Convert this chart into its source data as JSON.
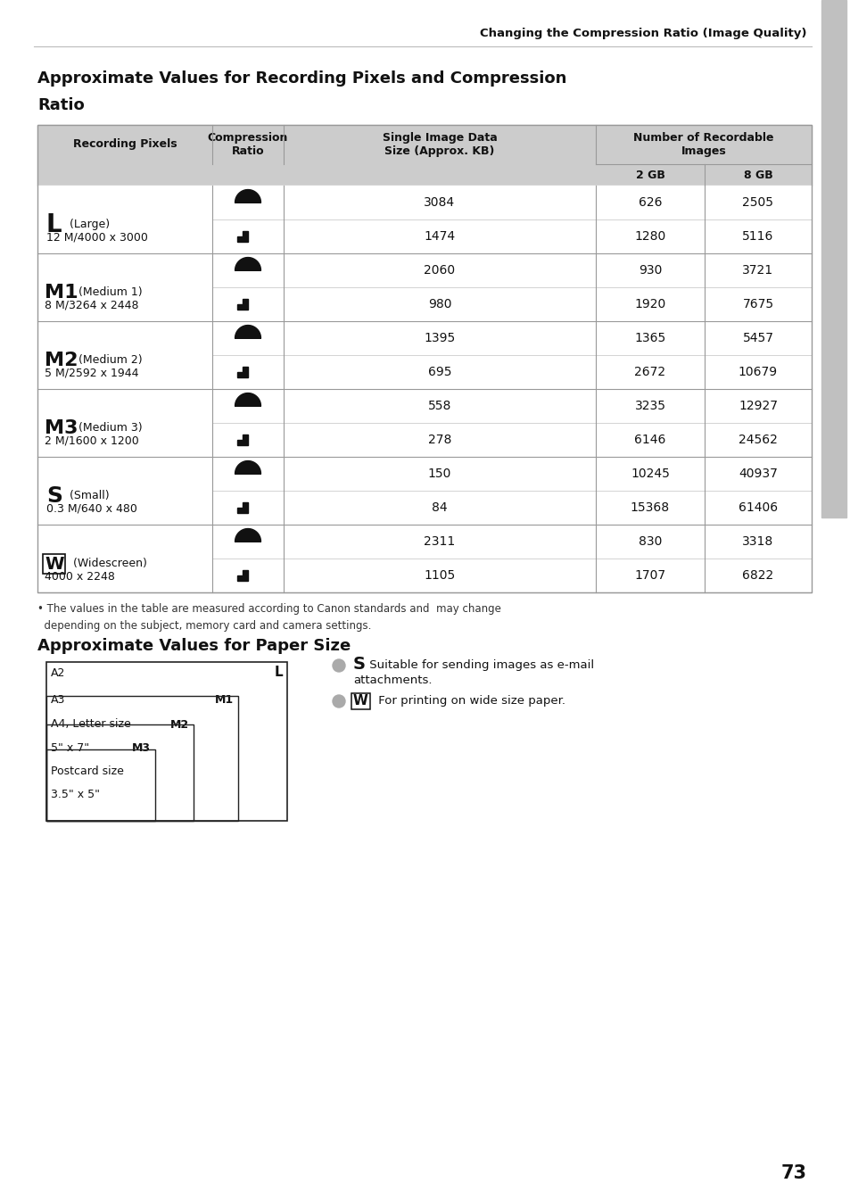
{
  "page_header": "Changing the Compression Ratio (Image Quality)",
  "main_title_line1": "Approximate Values for Recording Pixels and Compression",
  "main_title_line2": "Ratio",
  "table_rows": [
    {
      "pixel_main": "L",
      "pixel_desc": "(Large)",
      "pixel_sub": "12 M/4000 x 3000",
      "size1": "3084",
      "size2": "1474",
      "gb2_1": "626",
      "gb2_2": "1280",
      "gb8_1": "2505",
      "gb8_2": "5116"
    },
    {
      "pixel_main": "M1",
      "pixel_desc": "(Medium 1)",
      "pixel_sub": "8 M/3264 x 2448",
      "size1": "2060",
      "size2": "980",
      "gb2_1": "930",
      "gb2_2": "1920",
      "gb8_1": "3721",
      "gb8_2": "7675"
    },
    {
      "pixel_main": "M2",
      "pixel_desc": "(Medium 2)",
      "pixel_sub": "5 M/2592 x 1944",
      "size1": "1395",
      "size2": "695",
      "gb2_1": "1365",
      "gb2_2": "2672",
      "gb8_1": "5457",
      "gb8_2": "10679"
    },
    {
      "pixel_main": "M3",
      "pixel_desc": "(Medium 3)",
      "pixel_sub": "2 M/1600 x 1200",
      "size1": "558",
      "size2": "278",
      "gb2_1": "3235",
      "gb2_2": "6146",
      "gb8_1": "12927",
      "gb8_2": "24562"
    },
    {
      "pixel_main": "S",
      "pixel_desc": "(Small)",
      "pixel_sub": "0.3 M/640 x 480",
      "size1": "150",
      "size2": "84",
      "gb2_1": "10245",
      "gb2_2": "15368",
      "gb8_1": "40937",
      "gb8_2": "61406"
    },
    {
      "pixel_main": "W",
      "pixel_desc": "(Widescreen)",
      "pixel_sub": "4000 x 2248",
      "size1": "2311",
      "size2": "1105",
      "gb2_1": "830",
      "gb2_2": "1707",
      "gb8_1": "3318",
      "gb8_2": "6822"
    }
  ],
  "note_text": "• The values in the table are measured according to Canon standards and  may change\n  depending on the subject, memory card and camera settings.",
  "paper_title": "Approximate Values for Paper Size",
  "page_number": "73",
  "bg_color": "#ffffff",
  "header_bg": "#cccccc",
  "table_line_color": "#999999",
  "inner_line_color": "#cccccc"
}
